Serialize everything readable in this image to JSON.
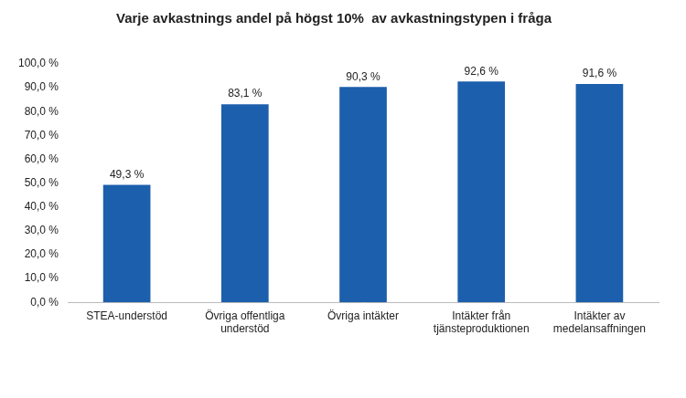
{
  "chart_data": {
    "type": "bar",
    "title": "Varje avkastnings andel på högst 10%  av avkastningstypen i fråga",
    "categories": [
      "STEA-understöd",
      "Övriga offentliga understöd",
      "Övriga intäkter",
      "Intäkter från tjänsteproduktionen",
      "Intäkter av medelansaffningen"
    ],
    "values": [
      49.3,
      83.1,
      90.3,
      92.6,
      91.6
    ],
    "value_labels": [
      "49,3 %",
      "83,1 %",
      "90,3 %",
      "92,6 %",
      "91,6 %"
    ],
    "color": "#1c5fac",
    "ylim": [
      0,
      100
    ],
    "yticks": [
      {
        "value": 0,
        "label": "0,0 %"
      },
      {
        "value": 10,
        "label": "10,0 %"
      },
      {
        "value": 20,
        "label": "20,0 %"
      },
      {
        "value": 30,
        "label": "30,0 %"
      },
      {
        "value": 40,
        "label": "40,0 %"
      },
      {
        "value": 50,
        "label": "50,0 %"
      },
      {
        "value": 60,
        "label": "60,0 %"
      },
      {
        "value": 70,
        "label": "70,0 %"
      },
      {
        "value": 80,
        "label": "80,0 %"
      },
      {
        "value": 90,
        "label": "90,0 %"
      },
      {
        "value": 100,
        "label": "100,0 %"
      }
    ],
    "grid": false,
    "data_labels": true
  }
}
